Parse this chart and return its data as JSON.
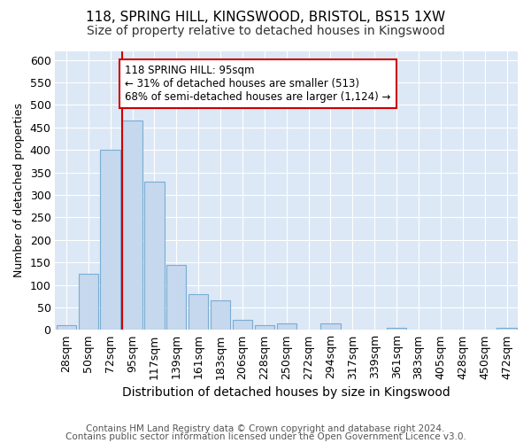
{
  "title1": "118, SPRING HILL, KINGSWOOD, BRISTOL, BS15 1XW",
  "title2": "Size of property relative to detached houses in Kingswood",
  "xlabel": "Distribution of detached houses by size in Kingswood",
  "ylabel": "Number of detached properties",
  "bin_labels": [
    "28sqm",
    "50sqm",
    "72sqm",
    "95sqm",
    "117sqm",
    "139sqm",
    "161sqm",
    "183sqm",
    "206sqm",
    "228sqm",
    "250sqm",
    "272sqm",
    "294sqm",
    "317sqm",
    "339sqm",
    "361sqm",
    "383sqm",
    "405sqm",
    "428sqm",
    "450sqm",
    "472sqm"
  ],
  "bar_values": [
    10,
    125,
    400,
    465,
    330,
    145,
    80,
    65,
    22,
    10,
    15,
    0,
    15,
    0,
    0,
    5,
    0,
    0,
    0,
    0,
    5
  ],
  "bar_color": "#c5d8ed",
  "bar_edge_color": "#7aadd4",
  "vline_color": "#cc0000",
  "vline_bin_index": 3,
  "annotation_text": "118 SPRING HILL: 95sqm\n← 31% of detached houses are smaller (513)\n68% of semi-detached houses are larger (1,124) →",
  "annotation_box_color": "#ffffff",
  "annotation_box_edge_color": "#cc0000",
  "ylim": [
    0,
    620
  ],
  "yticks": [
    0,
    50,
    100,
    150,
    200,
    250,
    300,
    350,
    400,
    450,
    500,
    550,
    600
  ],
  "footer1": "Contains HM Land Registry data © Crown copyright and database right 2024.",
  "footer2": "Contains public sector information licensed under the Open Government Licence v3.0.",
  "fig_background_color": "#ffffff",
  "plot_background_color": "#dce8f5",
  "title1_fontsize": 11,
  "title2_fontsize": 10,
  "xlabel_fontsize": 10,
  "ylabel_fontsize": 9,
  "tick_fontsize": 9,
  "annotation_fontsize": 8.5,
  "footer_fontsize": 7.5
}
